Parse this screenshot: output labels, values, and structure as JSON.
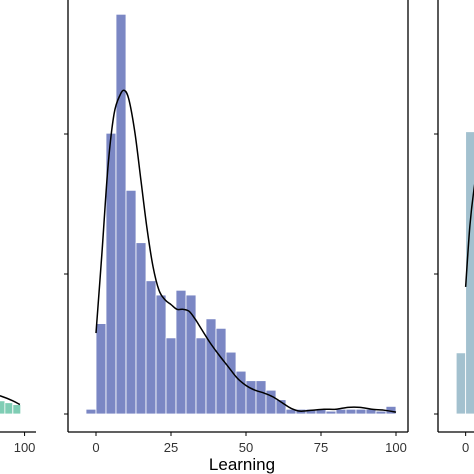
{
  "colors": {
    "left_bar": "#7fcdb4",
    "center_bar": "#7b87c4",
    "right_bar": "#a3c1cf",
    "axis": "#000000",
    "curve": "#000000"
  },
  "chart_data": [
    {
      "panel": "left",
      "type": "bar",
      "xlabel": "",
      "x_ticks": [
        100
      ],
      "xlim": [
        -8,
        104
      ],
      "ylim": [
        0,
        44
      ],
      "bin_width": 3.33,
      "bins_x": [
        83.3,
        86.7,
        90,
        93.3,
        96.7
      ],
      "values": [
        1.5,
        1.6,
        1.4,
        1.2,
        1.0
      ],
      "density_x": [
        75,
        80,
        85,
        90,
        95,
        98
      ],
      "density_y": [
        1.7,
        2.0,
        2.2,
        1.9,
        1.4,
        1.0
      ]
    },
    {
      "panel": "center",
      "type": "bar",
      "xlabel": "Learning",
      "x_ticks": [
        0,
        25,
        50,
        75,
        100
      ],
      "xlim": [
        -8,
        104
      ],
      "ylim": [
        0,
        43.5
      ],
      "bin_width": 3.33,
      "bins_x": [
        -1.67,
        1.67,
        5,
        8.33,
        11.67,
        15,
        18.33,
        21.67,
        25,
        28.33,
        31.67,
        35,
        38.33,
        41.67,
        45,
        48.33,
        51.67,
        55,
        58.33,
        61.67,
        65,
        68.33,
        71.67,
        75,
        78.33,
        81.67,
        85,
        88.33,
        91.67,
        95,
        98.33
      ],
      "values": [
        0.5,
        9.5,
        29.5,
        42,
        23.5,
        18,
        14,
        12.5,
        8,
        13,
        12.5,
        8,
        10,
        9,
        6.5,
        4.5,
        3.5,
        3.5,
        2.5,
        1.5,
        0.5,
        0.5,
        0.5,
        0.5,
        0.3,
        0.5,
        0.5,
        0.5,
        0.5,
        0.3,
        0.8
      ],
      "density_x": [
        0,
        2,
        4,
        6,
        8,
        9.5,
        11,
        13,
        15,
        17,
        19,
        21,
        23,
        25,
        27,
        29,
        31,
        33,
        35,
        38,
        41,
        44,
        47,
        50,
        53,
        56,
        59,
        62,
        65,
        68,
        72,
        76,
        80,
        84,
        88,
        92,
        96,
        100
      ],
      "density_y": [
        8.5,
        17,
        26,
        31.5,
        33.5,
        34,
        33,
        29.5,
        24.5,
        19.5,
        15.5,
        13,
        12,
        11.5,
        11,
        11,
        10.8,
        10,
        9,
        7.5,
        6.2,
        5,
        3.8,
        3,
        2.5,
        2.2,
        1.8,
        1.2,
        0.6,
        0.3,
        0.4,
        0.5,
        0.5,
        0.7,
        0.7,
        0.5,
        0.4,
        0.2
      ]
    },
    {
      "panel": "right",
      "type": "bar",
      "xlabel": "",
      "x_ticks": [
        0
      ],
      "xlim": [
        -8,
        104
      ],
      "ylim": [
        0,
        44
      ],
      "bin_width": 3.33,
      "bins_x": [
        -1.67,
        1.67,
        5,
        8.33
      ],
      "values": [
        6.5,
        30,
        40.5,
        28
      ],
      "density_x": [
        0,
        1.5,
        3,
        4.5,
        6,
        8
      ],
      "density_y": [
        13.5,
        20,
        24,
        26.5,
        27.5,
        28
      ]
    }
  ]
}
